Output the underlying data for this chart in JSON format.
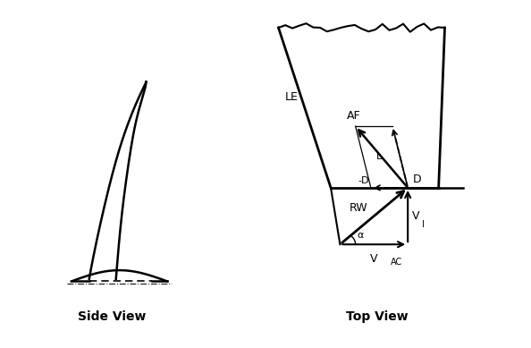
{
  "background_color": "#ffffff",
  "title_fontsize": 10,
  "label_fontsize": 9,
  "side_view_label": "Side View",
  "top_view_label": "Top View",
  "le_label": "LE",
  "af_label": "AF",
  "l_label": "L",
  "d_label": "D",
  "neg_d_label": "-D",
  "rw_label": "RW",
  "alpha_label": "α",
  "vi_label": "V",
  "vi_sub": "I",
  "vac_label": "V",
  "vac_sub": "AC"
}
